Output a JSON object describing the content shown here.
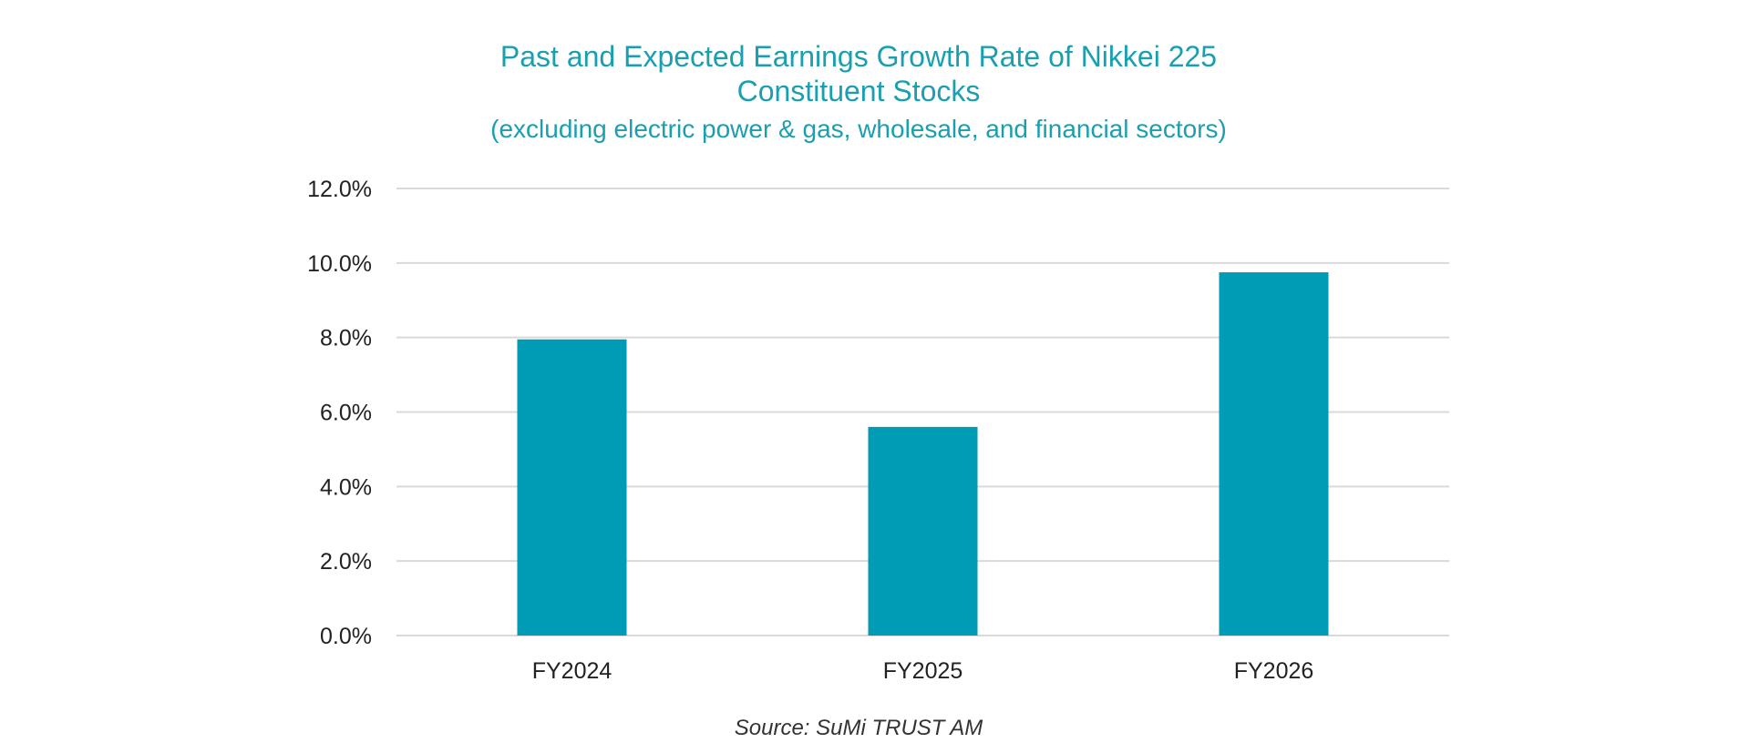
{
  "chart_data": {
    "type": "bar",
    "title": "Past and Expected Earnings Growth Rate of Nikkei 225",
    "title_line2": "Constituent Stocks",
    "subtitle": "(excluding electric power & gas, wholesale, and financial sectors)",
    "categories": [
      "FY2024",
      "FY2025",
      "FY2026"
    ],
    "values": [
      7.95,
      5.6,
      9.75
    ],
    "unit": "%",
    "ylim": [
      0,
      12
    ],
    "yticks": [
      "0.0%",
      "2.0%",
      "4.0%",
      "6.0%",
      "8.0%",
      "10.0%",
      "12.0%"
    ],
    "ytick_values": [
      0,
      2,
      4,
      6,
      8,
      10,
      12
    ],
    "xlabel": "",
    "ylabel": "",
    "grid": true,
    "bar_color": "#009bb4",
    "source": "Source: SuMi TRUST AM"
  }
}
